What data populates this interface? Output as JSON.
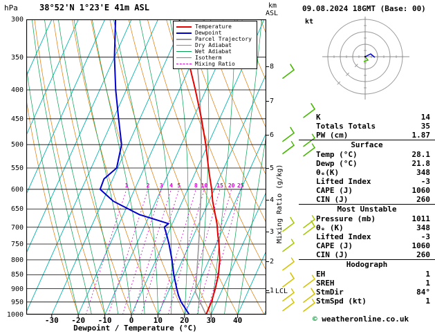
{
  "header": {
    "pressure_unit": "hPa",
    "title": "38°52'N 1°23'E 41m ASL",
    "km_label": "km",
    "asl_label": "ASL",
    "date": "09.08.2024 18GMT (Base: 00)"
  },
  "legend": {
    "items": [
      {
        "label": "Temperature",
        "color_key": "temperature",
        "thick": true
      },
      {
        "label": "Dewpoint",
        "color_key": "dewpoint",
        "thick": true
      },
      {
        "label": "Parcel Trajectory",
        "color_key": "parcel",
        "thick": true
      },
      {
        "label": "Dry Adiabat",
        "color_key": "dry_adiabat"
      },
      {
        "label": "Wet Adiabat",
        "color_key": "wet_adiabat"
      },
      {
        "label": "Isotherm",
        "color_key": "isotherm"
      },
      {
        "label": "Mixing Ratio",
        "color_key": "mixing_ratio",
        "dashed": true
      }
    ]
  },
  "axes": {
    "pressure_ticks": [
      300,
      350,
      400,
      450,
      500,
      550,
      600,
      650,
      700,
      750,
      800,
      850,
      900,
      950,
      1000
    ],
    "temp_ticks": [
      -30,
      -20,
      -10,
      0,
      10,
      20,
      30,
      40
    ],
    "xlabel": "Dewpoint / Temperature (°C)",
    "km_ticks": [
      {
        "km": "8",
        "p": 363
      },
      {
        "km": "7",
        "p": 418
      },
      {
        "km": "6",
        "p": 480
      },
      {
        "km": "5",
        "p": 550
      },
      {
        "km": "4",
        "p": 627
      },
      {
        "km": "3",
        "p": 712
      },
      {
        "km": "2",
        "p": 805
      },
      {
        "km": "1",
        "p": 905
      }
    ],
    "mixing_ratio_axis_label": "Mixing Ratio (g/kg)",
    "lcl_label": "LCL",
    "lcl_pressure": 913
  },
  "chart_data": {
    "type": "skewt_log_p_sounding",
    "pressure_range_hpa": [
      300,
      1000
    ],
    "pressure_hpa": [
      1000,
      950,
      925,
      900,
      850,
      800,
      750,
      725,
      700,
      690,
      665,
      630,
      600,
      575,
      550,
      500,
      450,
      400,
      350,
      300
    ],
    "temperature_c": [
      28.1,
      28.0,
      27.6,
      27.2,
      26.0,
      24.0,
      21.0,
      19.2,
      17.5,
      16.8,
      14.6,
      11.4,
      9.0,
      6.6,
      4.2,
      -0.8,
      -6.8,
      -14.0,
      -22.5,
      -32.0
    ],
    "dewpoint_c": [
      21.8,
      16.6,
      14.5,
      12.7,
      9.2,
      6.0,
      2.2,
      0.0,
      -2.4,
      -1.5,
      -14.0,
      -26.0,
      -33.0,
      -33.3,
      -30.4,
      -32.5,
      -38.0,
      -44.0,
      -50.0,
      -56.0
    ],
    "parcel": {
      "surface_temp_c": 28.1,
      "surface_dewpoint_c": 21.8
    },
    "isotherm_step_c": 10,
    "dry_adiabat_step_c": 10,
    "wet_adiabat_step_c": 5,
    "mixing_ratio_lines_gkg": [
      1,
      2,
      3,
      4,
      5,
      8,
      10,
      15,
      20,
      25
    ],
    "colors": {
      "temperature": "#e60000",
      "dewpoint": "#0000cd",
      "parcel": "#999999",
      "dry_adiabat": "#e07800",
      "wet_adiabat": "#00a050",
      "isotherm": "#00b4b4",
      "mixing_ratio": "#d400d4",
      "barb_low": "#d4c400",
      "barb_mid": "#aac800",
      "barb_high": "#44b800"
    },
    "wind_barbs": [
      {
        "p": 375,
        "kt": 10,
        "col": 1,
        "level": "high"
      },
      {
        "p": 485,
        "kt": 10,
        "col": 1,
        "level": "high"
      },
      {
        "p": 510,
        "kt": 5,
        "col": 1,
        "level": "high"
      },
      {
        "p": 700,
        "kt": 10,
        "col": 1,
        "level": "mid"
      },
      {
        "p": 760,
        "kt": 5,
        "col": 1,
        "level": "mid"
      },
      {
        "p": 820,
        "kt": 5,
        "col": 1,
        "level": "low"
      },
      {
        "p": 878,
        "kt": 10,
        "col": 1,
        "level": "low"
      },
      {
        "p": 930,
        "kt": 5,
        "col": 1,
        "level": "low"
      },
      {
        "p": 968,
        "kt": 5,
        "col": 1,
        "level": "low"
      },
      {
        "p": 440,
        "kt": 10,
        "col": 2,
        "level": "high"
      },
      {
        "p": 495,
        "kt": 5,
        "col": 2,
        "level": "high"
      },
      {
        "p": 515,
        "kt": 5,
        "col": 2,
        "level": "high"
      },
      {
        "p": 690,
        "kt": 5,
        "col": 2,
        "level": "mid"
      },
      {
        "p": 710,
        "kt": 10,
        "col": 2,
        "level": "mid"
      },
      {
        "p": 880,
        "kt": 5,
        "col": 2,
        "level": "low"
      },
      {
        "p": 935,
        "kt": 10,
        "col": 2,
        "level": "low"
      },
      {
        "p": 970,
        "kt": 5,
        "col": 2,
        "level": "low"
      }
    ]
  },
  "hodograph": {
    "unit_label": "kt",
    "ring_count": 3
  },
  "stats": {
    "sections": [
      {
        "title": null,
        "rows": [
          [
            "K",
            "14"
          ],
          [
            "Totals Totals",
            "35"
          ],
          [
            "PW (cm)",
            "1.87"
          ]
        ]
      },
      {
        "title": "Surface",
        "rows": [
          [
            "Temp (°C)",
            "28.1"
          ],
          [
            "Dewp (°C)",
            "21.8"
          ],
          [
            "θₑ(K)",
            "348"
          ],
          [
            "Lifted Index",
            "-3"
          ],
          [
            "CAPE (J)",
            "1060"
          ],
          [
            "CIN (J)",
            "260"
          ]
        ]
      },
      {
        "title": "Most Unstable",
        "rows": [
          [
            "Pressure (mb)",
            "1011"
          ],
          [
            "θₑ (K)",
            "348"
          ],
          [
            "Lifted Index",
            "-3"
          ],
          [
            "CAPE (J)",
            "1060"
          ],
          [
            "CIN (J)",
            "260"
          ]
        ]
      },
      {
        "title": "Hodograph",
        "rows": [
          [
            "EH",
            "1"
          ],
          [
            "SREH",
            "1"
          ],
          [
            "StmDir",
            "84°"
          ],
          [
            "StmSpd (kt)",
            "1"
          ]
        ]
      }
    ]
  },
  "footer": {
    "copyright_symbol": "©",
    "copyright_text": "weatheronline.co.uk"
  }
}
